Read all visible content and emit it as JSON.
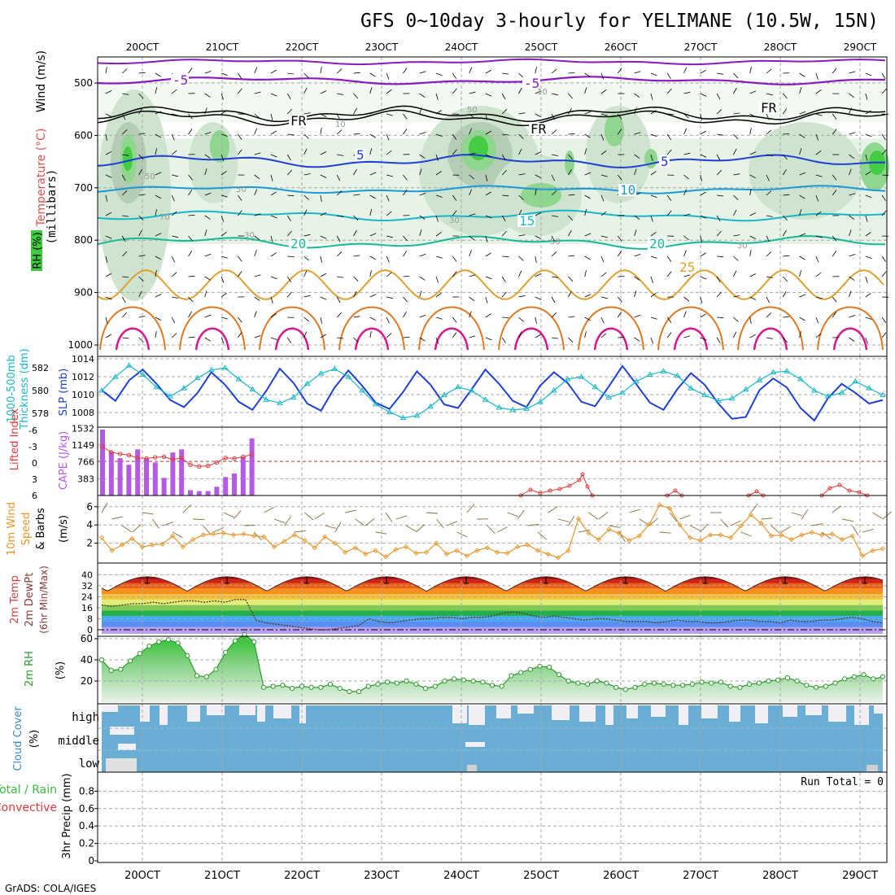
{
  "title": "GFS 0~10day 3-hourly for YELIMANE (10.5W, 15N)",
  "credit": "GrADS: COLA/IGES",
  "colors": {
    "grid": "#a8a8a8",
    "purple": "#8a1ac0",
    "blue": "#1e3fd8",
    "lightblue": "#1b9ad8",
    "cyan": "#18b8c8",
    "teal": "#18b898",
    "orange": "#e0a030",
    "darkorange": "#e07820",
    "magenta": "#d8188c",
    "rh_green": "#3ccc3c",
    "cape_bar": "#b45ae6",
    "li_red": "#e03a3a",
    "wind_orange": "#e8962a",
    "rh2m_green": "#2c9a2c",
    "cloud_blue": "#6aaed6",
    "cloud_pale": "#f1eef6",
    "precip_green": "#3cbc3c",
    "precip_red": "#e03a3a"
  },
  "chart_data": [
    {
      "id": "upper_air",
      "type": "contour",
      "ylabel": "(millibars)",
      "left_labels": [
        "Wind (m/s)",
        "Temperature (°C)",
        "RH (%)"
      ],
      "x_ticks_top": [
        "20OCT",
        "21OCT",
        "22OCT",
        "23OCT",
        "24OCT",
        "25OCT",
        "26OCT",
        "27OCT",
        "28OCT",
        "29OCT"
      ],
      "ylim": [
        1000,
        450
      ],
      "y_ticks": [
        500,
        600,
        700,
        800,
        900,
        1000
      ],
      "contour_labels": [
        "-5",
        "-5",
        "FR",
        "FR",
        "FR",
        "5",
        "5",
        "10",
        "15",
        "20",
        "20",
        "25"
      ],
      "rh_labels": [
        "50",
        "50",
        "30",
        "30",
        "10",
        "10",
        "50",
        "70",
        "50",
        "30"
      ]
    },
    {
      "id": "slp_thickness",
      "type": "line",
      "left_labels": [
        "1000-500mb",
        "Thickness (dm)"
      ],
      "right_label": "SLP (mb)",
      "y_ticks_left": [
        578,
        580,
        582
      ],
      "y_ticks_right": [
        1008,
        1010,
        1012,
        1014
      ],
      "series": [
        {
          "values": [
            1010.5,
            1009.3,
            1011.6,
            1012.8,
            1011.2,
            1009.4,
            1008.6,
            1010.2,
            1012.5,
            1011.1,
            1009.2,
            1008.3,
            1010.4,
            1012.9,
            1011.3,
            1009.0,
            1008.2,
            1010.8,
            1012.7,
            1011.0,
            1009.1,
            1008.4,
            1010.3,
            1012.6,
            1011.1,
            1008.9,
            1008.5,
            1010.6,
            1012.8,
            1011.2,
            1009.3,
            1008.6,
            1011.0,
            1012.5,
            1011.3,
            1009.2,
            1008.7,
            1010.9,
            1013.2,
            1011.2,
            1009.1,
            1008.3,
            1010.6,
            1012.4,
            1011.1,
            1009.0,
            1007.3,
            1007.5,
            1010.5,
            1011.8,
            1010.8,
            1008.5,
            1007.1,
            1009.6,
            1011.2,
            1010.2,
            1009.0,
            1009.4
          ]
        },
        {
          "values": [
            580.0,
            581.2,
            582.2,
            581.4,
            580.3,
            579.5,
            580.2,
            581.1,
            581.8,
            582.0,
            581.0,
            580.1,
            579.2,
            578.9,
            579.4,
            580.6,
            581.5,
            581.9,
            581.2,
            580.0,
            578.8,
            578.1,
            577.6,
            577.8,
            578.6,
            579.6,
            580.3,
            580.0,
            579.2,
            578.5,
            578.3,
            578.4,
            579.0,
            580.0,
            581.0,
            581.2,
            580.3,
            579.4,
            579.8,
            580.8,
            581.4,
            581.7,
            581.3,
            580.2,
            579.6,
            579.1,
            579.3,
            580.1,
            580.9,
            581.6,
            581.7,
            581.0,
            580.0,
            579.5,
            579.8,
            580.8,
            580.2,
            579.6
          ]
        }
      ]
    },
    {
      "id": "lifted_cape",
      "type": "bar",
      "left_labels": [
        "Lifted Index",
        "CAPE (J/kg)"
      ],
      "li_ticks": [
        "-6",
        "-3",
        "0",
        "3",
        "6"
      ],
      "cape_ticks": [
        "1532",
        "1149",
        "766",
        "383"
      ],
      "cape_values": [
        1500,
        1000,
        850,
        700,
        1050,
        850,
        750,
        400,
        980,
        1050,
        120,
        100,
        100,
        200,
        420,
        500,
        870,
        1300
      ],
      "li_values": [
        -2.6,
        -1.6,
        -1.3,
        -1.1,
        -0.6,
        -0.5,
        -0.7,
        -0.8,
        -0.3,
        -0.6,
        0.6,
        0.9,
        0.8,
        0.2,
        -0.6,
        -0.5,
        -0.8,
        -1.2
      ]
    },
    {
      "id": "wind10m",
      "type": "line",
      "left_labels": [
        "10m Wind",
        "Speed",
        "& Barbs"
      ],
      "ylabel": "(m/s)",
      "y_ticks": [
        2,
        4,
        6
      ],
      "ylim": [
        0,
        6.8
      ],
      "values": [
        2.6,
        1.2,
        1.8,
        2.5,
        1.6,
        1.8,
        1.9,
        2.8,
        1.6,
        2.4,
        2.9,
        3.0,
        3.1,
        2.9,
        3.0,
        2.8,
        2.7,
        1.6,
        2.2,
        2.9,
        2.3,
        1.5,
        2.7,
        2.0,
        1.0,
        1.5,
        0.8,
        1.2,
        0.5,
        1.3,
        1.6,
        0.9,
        1.0,
        2.0,
        0.8,
        1.2,
        0.6,
        1.2,
        1.5,
        1.0,
        0.9,
        1.6,
        1.8,
        1.2,
        0.8,
        0.4,
        1.2,
        4.7,
        3.1,
        2.4,
        3.5,
        3.1,
        2.3,
        2.8,
        4.1,
        6.2,
        5.8,
        4.0,
        2.6,
        2.3,
        2.9,
        2.9,
        2.6,
        3.9,
        5.1,
        4.2,
        2.8,
        2.9,
        2.4,
        2.9,
        3.2,
        2.9,
        3.0,
        2.4,
        2.8,
        0.6,
        1.2,
        1.4
      ]
    },
    {
      "id": "temp2m",
      "type": "area",
      "left_labels": [
        "2m Temp",
        "2m DewPt",
        "(6hr Min/Max)"
      ],
      "y_ticks": [
        0,
        8,
        16,
        24,
        32,
        40
      ],
      "ylim": [
        -3,
        42
      ],
      "temp_min": 28,
      "temp_max": 38.5,
      "days": 10,
      "dewpoint": [
        18,
        17,
        18,
        19,
        19,
        20,
        19,
        20,
        21,
        21,
        20,
        21,
        20,
        22,
        22,
        7,
        5,
        4,
        3,
        2,
        1,
        0,
        0,
        1,
        2,
        3,
        8,
        6,
        5,
        6,
        7,
        8,
        8,
        9,
        9,
        8,
        9,
        9,
        10,
        12,
        13,
        12,
        10,
        9,
        10,
        9,
        8,
        7,
        8,
        8,
        7,
        6,
        6,
        6,
        5,
        6,
        7,
        6,
        6,
        5,
        5,
        6,
        7,
        7,
        6,
        6,
        5,
        7,
        6,
        6,
        7,
        7,
        8,
        9,
        8,
        6,
        5
      ]
    },
    {
      "id": "rh2m",
      "type": "area",
      "left_labels": [
        "2m RH"
      ],
      "ylabel": "(%)",
      "y_ticks": [
        20,
        40,
        60
      ],
      "ylim": [
        0,
        68
      ],
      "values": [
        40,
        30,
        31,
        39,
        46,
        53,
        57,
        59,
        56,
        44,
        25,
        24,
        31,
        47,
        58,
        64,
        57,
        14,
        15,
        16,
        13,
        15,
        14,
        14,
        17,
        13,
        10,
        10,
        15,
        17,
        19,
        18,
        20,
        17,
        13,
        15,
        20,
        22,
        21,
        20,
        19,
        16,
        15,
        25,
        28,
        31,
        34,
        33,
        26,
        20,
        18,
        17,
        20,
        18,
        14,
        12,
        14,
        17,
        18,
        17,
        16,
        16,
        17,
        19,
        18,
        19,
        15,
        14,
        17,
        18,
        20,
        21,
        23,
        20,
        16,
        14,
        15,
        18,
        22,
        24,
        26,
        22,
        24
      ]
    },
    {
      "id": "cloud",
      "type": "heatmap",
      "left_labels": [
        "Cloud Cover",
        "(%)"
      ],
      "levels": [
        "high",
        "middle",
        "low"
      ]
    },
    {
      "id": "precip",
      "type": "bar",
      "left_labels": [
        "Total / Rain",
        "Convective"
      ],
      "ylabel": "3hr Precip (mm)",
      "run_total": "Run Total = 0",
      "y_ticks": [
        "0",
        "0.2",
        "0.4",
        "0.6",
        "0.8"
      ],
      "ylim": [
        0,
        1
      ],
      "x_ticks_bottom": [
        "20OCT",
        "21OCT",
        "22OCT",
        "23OCT",
        "24OCT",
        "25OCT",
        "26OCT",
        "27OCT",
        "28OCT",
        "29OCT"
      ]
    }
  ]
}
